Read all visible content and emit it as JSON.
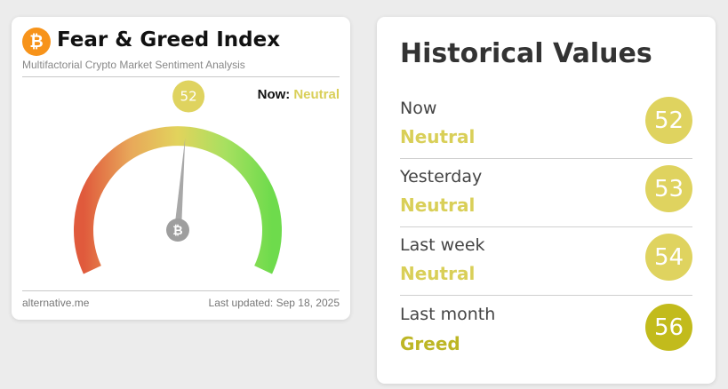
{
  "gauge": {
    "title": "Fear & Greed Index",
    "subtitle": "Multifactorial Crypto Market Sentiment Analysis",
    "value": 52,
    "value_label": "52",
    "now_label": "Now:",
    "now_classification": "Neutral",
    "source": "alternative.me",
    "last_updated": "Last updated: Sep 18, 2025",
    "logo_glyph": "₿",
    "pointer_glyph": "₿"
  },
  "historical": {
    "title": "Historical Values",
    "rows": [
      {
        "label": "Now",
        "classification": "Neutral",
        "value": "52",
        "color": "#dfd35f",
        "text_color": "#d9cf58"
      },
      {
        "label": "Yesterday",
        "classification": "Neutral",
        "value": "53",
        "color": "#dfd35f",
        "text_color": "#d9cf58"
      },
      {
        "label": "Last week",
        "classification": "Neutral",
        "value": "54",
        "color": "#dfd35f",
        "text_color": "#d9cf58"
      },
      {
        "label": "Last month",
        "classification": "Greed",
        "value": "56",
        "color": "#c2bb1c",
        "text_color": "#bdb625"
      }
    ]
  },
  "colors": {
    "fear": "#e05a3c",
    "neutral": "#e2d35c",
    "greed": "#6edb4c",
    "needle": "#a8a8a8"
  }
}
